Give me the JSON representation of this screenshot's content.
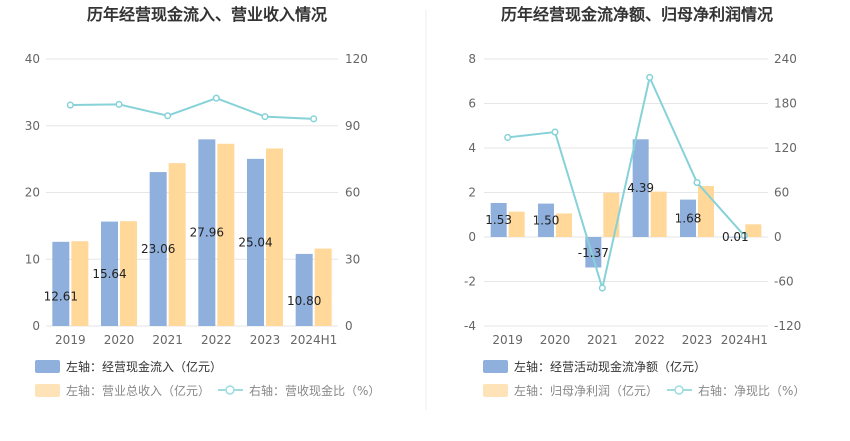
{
  "colors": {
    "bar_blue": "#8FAFDD",
    "bar_orange": "#FFD89A",
    "line_teal": "#86D2D8",
    "grid": "#E6E6E6",
    "divider": "#EEEEEE"
  },
  "chart_data": [
    {
      "type": "bar+line",
      "title": "历年经营现金流入、营业收入情况",
      "categories": [
        "2019",
        "2020",
        "2021",
        "2022",
        "2023",
        "2024H1"
      ],
      "y_left": {
        "min": 0,
        "max": 40,
        "ticks": [
          "0",
          "10",
          "20",
          "30",
          "40"
        ]
      },
      "y_right": {
        "min": 0,
        "max": 120,
        "ticks": [
          "0",
          "30",
          "60",
          "90",
          "120"
        ]
      },
      "series": [
        {
          "name": "左轴：经营现金流入（亿元）",
          "kind": "bar",
          "axis": "left",
          "values": [
            12.61,
            15.64,
            23.06,
            27.96,
            25.04,
            10.8
          ],
          "labels": [
            "12.61",
            "15.64",
            "23.06",
            "27.96",
            "25.04",
            "10.80"
          ]
        },
        {
          "name": "左轴：营业总收入（亿元）",
          "kind": "bar",
          "axis": "left",
          "values": [
            12.7,
            15.7,
            24.4,
            27.3,
            26.6,
            11.6
          ]
        },
        {
          "name": "右轴：营收现金比（%）",
          "kind": "line",
          "axis": "right",
          "values": [
            99.3,
            99.6,
            94.5,
            102.4,
            94.1,
            93.1
          ]
        }
      ]
    },
    {
      "type": "bar+line",
      "title": "历年经营现金流净额、归母净利润情况",
      "categories": [
        "2019",
        "2020",
        "2021",
        "2022",
        "2023",
        "2024H1"
      ],
      "y_left": {
        "min": -4,
        "max": 8,
        "ticks": [
          "-4",
          "-2",
          "0",
          "2",
          "4",
          "6",
          "8"
        ]
      },
      "y_right": {
        "min": -120,
        "max": 240,
        "ticks": [
          "-120",
          "-60",
          "0",
          "60",
          "120",
          "180",
          "240"
        ]
      },
      "series": [
        {
          "name": "左轴：经营活动现金流净额（亿元）",
          "kind": "bar",
          "axis": "left",
          "values": [
            1.53,
            1.5,
            -1.37,
            4.39,
            1.68,
            0.01
          ],
          "labels": [
            "1.53",
            "1.50",
            "-1.37",
            "4.39",
            "1.68",
            "0.01"
          ]
        },
        {
          "name": "左轴：归母净利润（亿元）",
          "kind": "bar",
          "axis": "left",
          "values": [
            1.14,
            1.06,
            1.99,
            2.04,
            2.29,
            0.57
          ]
        },
        {
          "name": "右轴：净现比（%）",
          "kind": "line",
          "axis": "right",
          "values": [
            134.2,
            141.5,
            -68.8,
            215.2,
            73.4,
            1.8
          ]
        }
      ]
    }
  ]
}
